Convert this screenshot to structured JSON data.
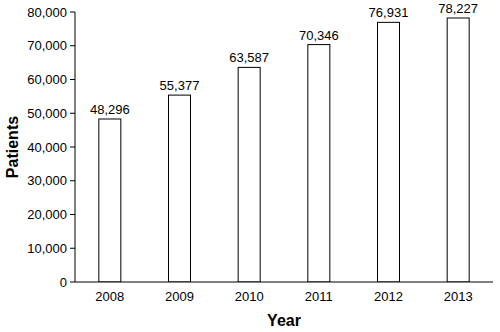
{
  "chart_data": {
    "type": "bar",
    "x_label": "Year",
    "y_label": "Patients",
    "categories": [
      "2008",
      "2009",
      "2010",
      "2011",
      "2012",
      "2013"
    ],
    "values": [
      48296,
      55377,
      63587,
      70346,
      76931,
      78227
    ],
    "value_labels": [
      "48,296",
      "55,377",
      "63,587",
      "70,346",
      "76,931",
      "78,227"
    ],
    "data_labels": true,
    "color": "#ffffff",
    "grid": false,
    "ylim": [
      0,
      80000
    ],
    "yticks": [
      0,
      {
        "value": 10000,
        "label": "10,000"
      },
      {
        "value": 20000,
        "label": "20,000"
      },
      {
        "value": 30000,
        "label": "30,000"
      },
      {
        "value": 40000,
        "label": "40,000"
      },
      {
        "value": 50000,
        "label": "50,000"
      },
      {
        "value": 60000,
        "label": "60,000"
      },
      {
        "value": 70000,
        "label": "70,000"
      },
      {
        "value": 80000,
        "label": "80,000"
      }
    ]
  }
}
